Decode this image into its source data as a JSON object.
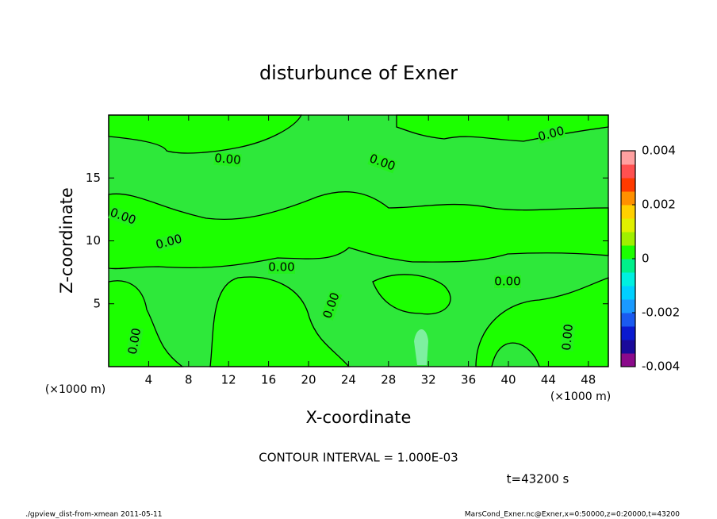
{
  "chart_data": {
    "type": "contour",
    "title": "disturbunce of Exner",
    "xlabel": "X-coordinate",
    "ylabel": "Z-coordinate",
    "x_unit": "(×1000 m)",
    "xlim": [
      0,
      50
    ],
    "xticks": [
      4,
      8,
      12,
      16,
      20,
      24,
      28,
      32,
      36,
      40,
      44,
      48
    ],
    "ylim": [
      0,
      20
    ],
    "yticks": [
      5,
      10,
      15
    ],
    "contour": {
      "value": 0,
      "label": "0.00"
    },
    "clim": [
      -0.004,
      0.004
    ],
    "cticks": [
      0.004,
      0.002,
      0,
      -0.002,
      -0.004
    ],
    "colorbar_colors": [
      "#8b0a8b",
      "#1a0a9a",
      "#0a1ad0",
      "#1a5af0",
      "#1a9aff",
      "#00d0ff",
      "#00f0e0",
      "#00f08a",
      "#1cff00",
      "#a0f000",
      "#e0f000",
      "#ffd000",
      "#ff9000",
      "#ff3a00",
      "#ff5050",
      "#ffa0a0"
    ],
    "annotation": "CONTOUR INTERVAL = 1.000E-03",
    "time_label": "t=43200 s",
    "footer_left": "./gpview_dist-from-xmean  2011-05-11",
    "footer_right": "MarsCond_Exner.nc@Exner,x=0:50000,z=0:20000,t=43200"
  }
}
